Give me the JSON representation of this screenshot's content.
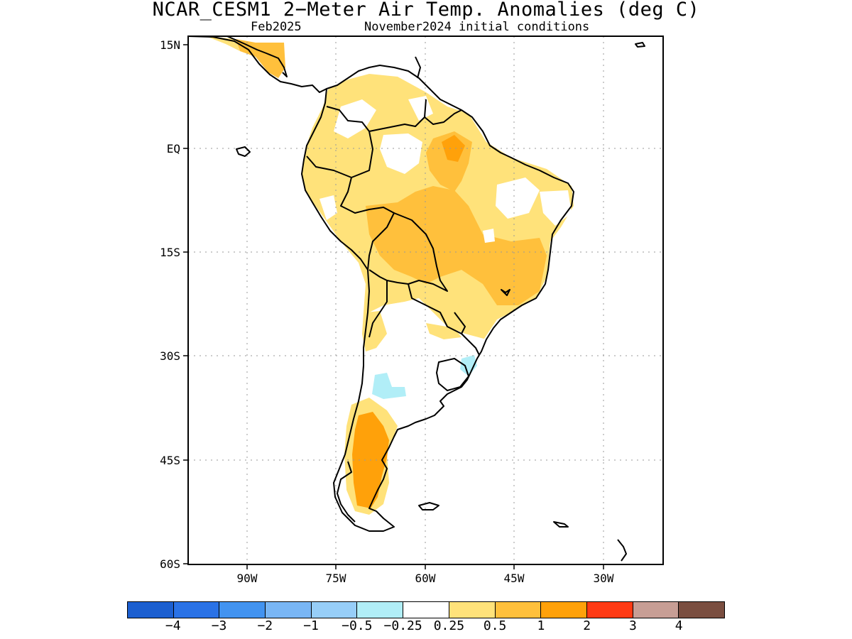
{
  "title": "NCAR_CESM1 2−Meter Air Temp. Anomalies (deg C)",
  "subtitle_left": "Feb2025",
  "subtitle_right": "November2024 initial conditions",
  "map": {
    "lat_ticks": [
      "15N",
      "EQ",
      "15S",
      "30S",
      "45S",
      "60S"
    ],
    "lon_ticks": [
      "90W",
      "75W",
      "60W",
      "45W",
      "30W"
    ],
    "gridlines": true,
    "extent": {
      "lon_west": -100,
      "lon_east": -20,
      "lat_south": -60,
      "lat_north": 15
    },
    "anomaly_regions": [
      {
        "name": "central-america",
        "category": "0.5-1"
      },
      {
        "name": "northern-south-america",
        "category": "0.25-0.5"
      },
      {
        "name": "amazon-north",
        "category": "0.5-1"
      },
      {
        "name": "central-brazil",
        "category": "0.5-1"
      },
      {
        "name": "patagonia",
        "category": "1-2"
      },
      {
        "name": "argentina-central",
        "category": "-0.5--0.25"
      },
      {
        "name": "southern-brazil",
        "category": "-0.5--0.25"
      }
    ]
  },
  "colorbar": {
    "colors": [
      "#1c5fd0",
      "#2a72e6",
      "#4293f0",
      "#79b6f5",
      "#97cef8",
      "#b1eef7",
      "#ffffff",
      "#ffe27a",
      "#ffc03c",
      "#ffa10a",
      "#ff3a14",
      "#c79e95",
      "#7a4e40"
    ],
    "labels": [
      "−4",
      "−3",
      "−2",
      "−1",
      "−0.5",
      "−0.25",
      "0.25",
      "0.5",
      "1",
      "2",
      "3",
      "4"
    ]
  }
}
